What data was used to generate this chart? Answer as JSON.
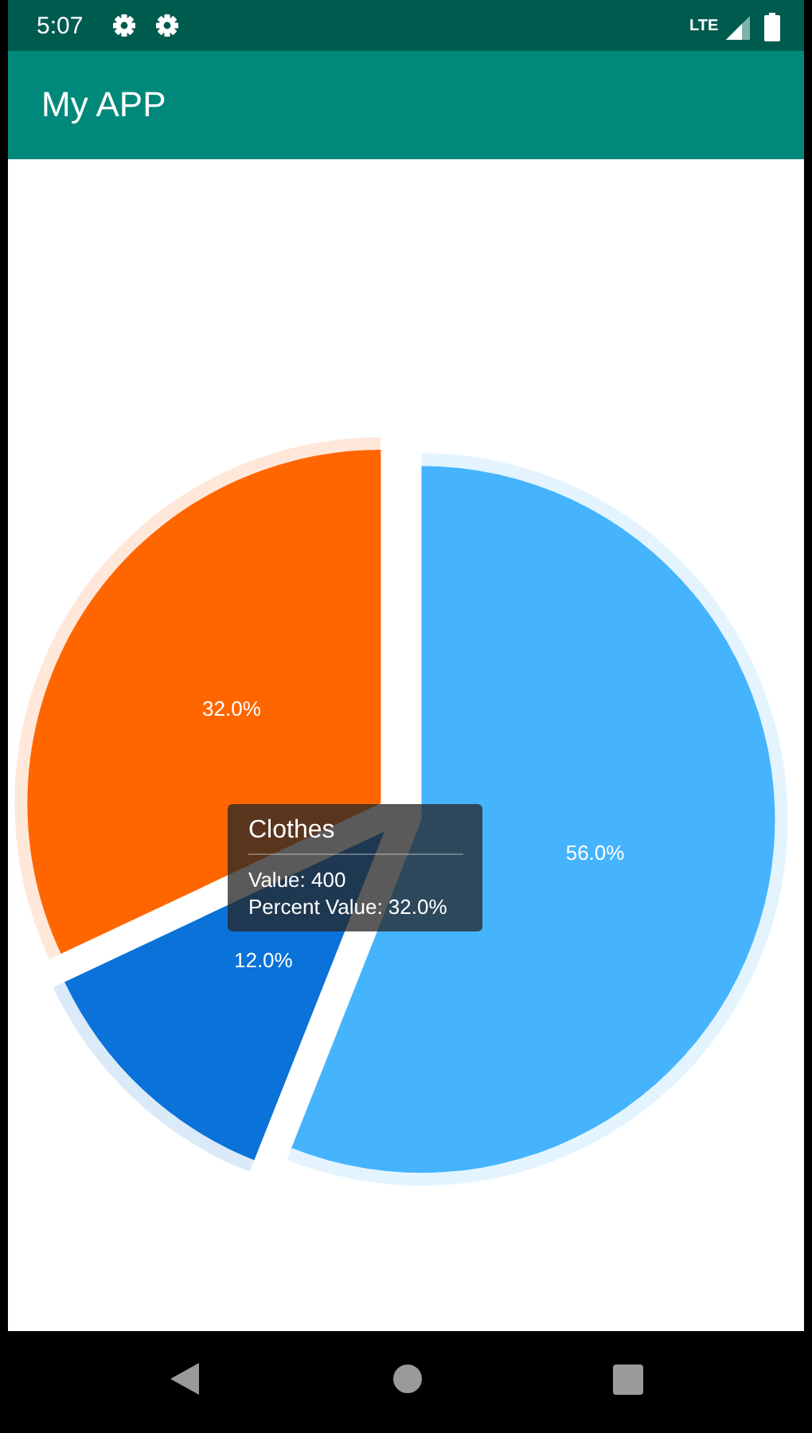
{
  "chart_data": {
    "type": "pie",
    "title": "My APP",
    "categories": [
      null,
      null,
      "Clothes"
    ],
    "values": [
      56,
      12,
      32
    ],
    "colors": [
      "#45b4fd",
      "#0a72d9",
      "#ff6600"
    ],
    "value_labels": [
      "56.0%",
      "12.0%",
      "32.0%"
    ],
    "annotations": [
      "5:07",
      "LTE",
      "Value: 400",
      "Percent Value: 32.0%"
    ]
  }
}
